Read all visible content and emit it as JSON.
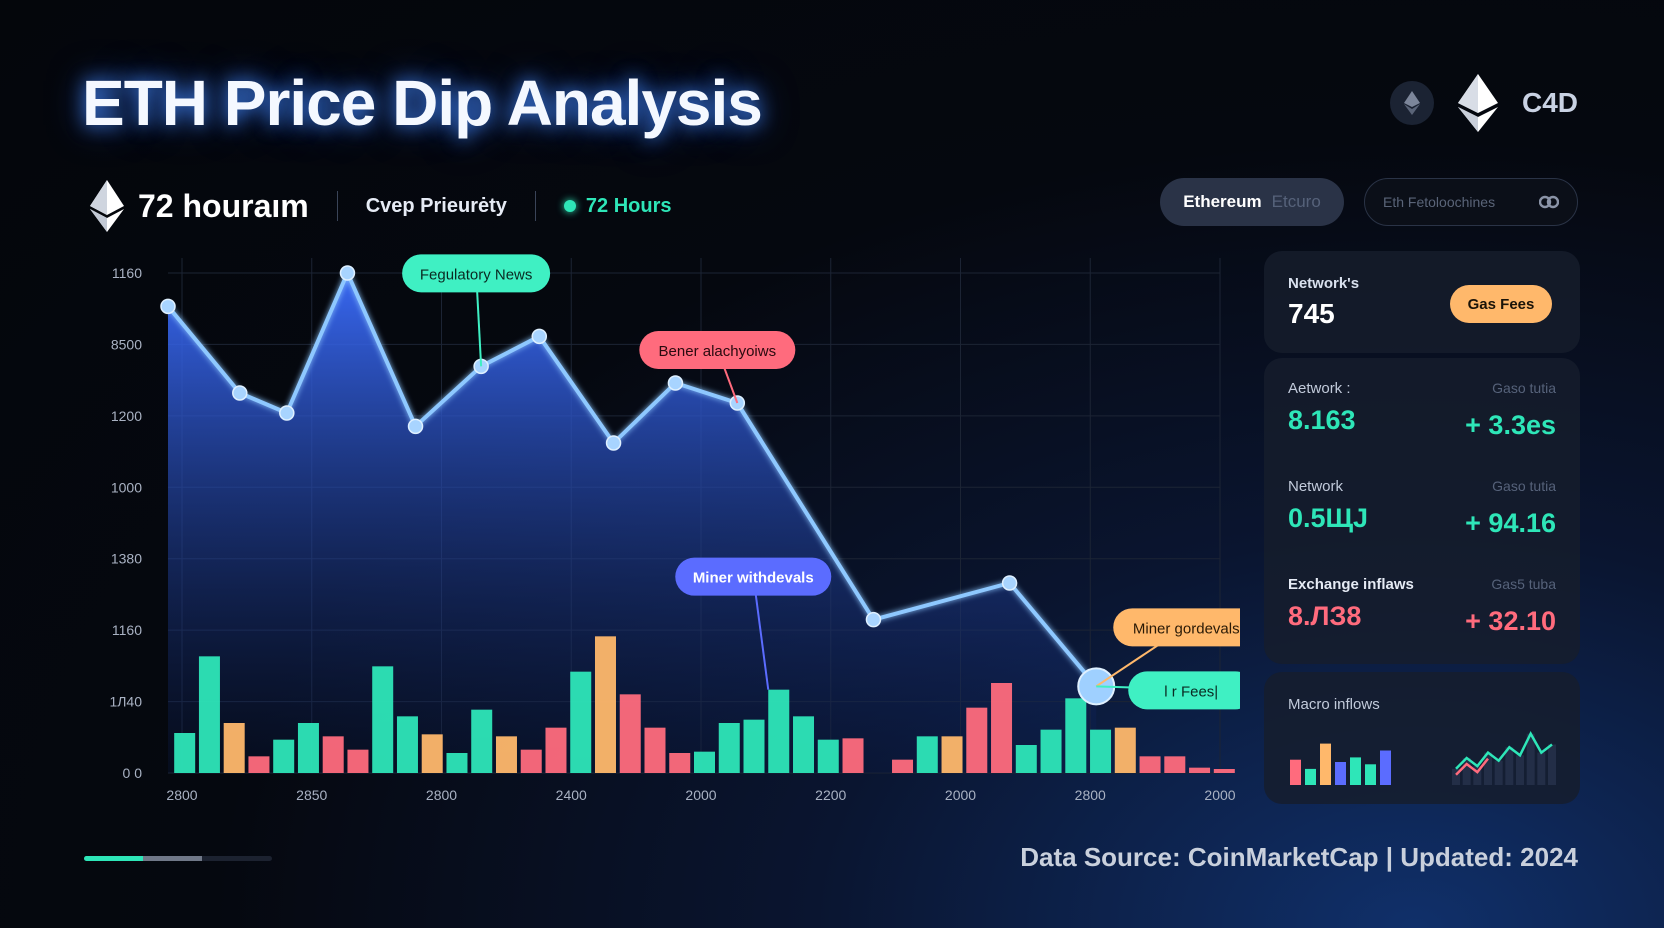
{
  "header": {
    "title": "ETH Price Dip Analysis",
    "brand": "C4D",
    "icons": [
      "ethereum-icon-small",
      "ethereum-logo-icon"
    ]
  },
  "subbar": {
    "title": "72 houraım",
    "label": "Cvep Prieurėty",
    "time": "72 Hours"
  },
  "controls": {
    "eth_pill": "Ethereum",
    "eth_pill_faint": "Etcuro",
    "search_placeholder": "Eth Fetoloochines"
  },
  "panels": {
    "network": {
      "label": "Network's",
      "value": "745",
      "button": "Gas Fees"
    },
    "metrics": [
      {
        "label": "Aetwork :",
        "right_label": "Gaso tutia",
        "value": "8.163",
        "change": "+ 3.3es",
        "color": "teal"
      },
      {
        "label": "Network",
        "right_label": "Gaso tutia",
        "value": "0.5ЩJ",
        "change": "+ 94.16",
        "color": "teal"
      },
      {
        "label": "Exchange inflaws",
        "right_label": "Gas5 tuba",
        "value": "8.ЛЗ8",
        "change": "+ 32.10",
        "color": "red"
      }
    ],
    "macro": {
      "label": "Macro inflows"
    }
  },
  "footer": {
    "source": "Data Source: CoinMarketCap | Updated: 2024"
  },
  "progress": {
    "fraction": 0.63
  },
  "colors": {
    "teal": "#2ee6b8",
    "orange": "#ffb86b",
    "red": "#ff6b7d",
    "line": "#8ec8ff",
    "area_top": "#3b6dff"
  },
  "chart_data": {
    "type": "area",
    "title": "",
    "xlabel": "",
    "ylabel": "",
    "yticks": [
      "1160",
      "8500",
      "1200",
      "1000",
      "1380",
      "1160",
      "1Л40",
      "0 0"
    ],
    "xticks": [
      "2800",
      "2850",
      "2800",
      "2400",
      "2000",
      "2200",
      "2000",
      "2800",
      "2000"
    ],
    "grid": true,
    "price_line": [
      {
        "x": 0.0,
        "y": 7.0
      },
      {
        "x": 0.58,
        "y": 5.7
      },
      {
        "x": 0.96,
        "y": 5.4
      },
      {
        "x": 1.45,
        "y": 7.5
      },
      {
        "x": 2.0,
        "y": 5.2
      },
      {
        "x": 2.53,
        "y": 6.1
      },
      {
        "x": 3.0,
        "y": 6.55
      },
      {
        "x": 3.6,
        "y": 4.95
      },
      {
        "x": 4.1,
        "y": 5.85
      },
      {
        "x": 4.6,
        "y": 5.55
      },
      {
        "x": 5.7,
        "y": 2.3
      },
      {
        "x": 6.8,
        "y": 2.85
      },
      {
        "x": 7.5,
        "y": 1.3
      }
    ],
    "bars": [
      {
        "x": 0.05,
        "v": 0.6,
        "c": "teal"
      },
      {
        "x": 0.25,
        "v": 1.75,
        "c": "teal"
      },
      {
        "x": 0.45,
        "v": 0.75,
        "c": "orange"
      },
      {
        "x": 0.65,
        "v": 0.25,
        "c": "red"
      },
      {
        "x": 0.85,
        "v": 0.5,
        "c": "teal"
      },
      {
        "x": 1.05,
        "v": 0.75,
        "c": "teal"
      },
      {
        "x": 1.25,
        "v": 0.55,
        "c": "red"
      },
      {
        "x": 1.45,
        "v": 0.35,
        "c": "red"
      },
      {
        "x": 1.65,
        "v": 1.6,
        "c": "teal"
      },
      {
        "x": 1.85,
        "v": 0.85,
        "c": "teal"
      },
      {
        "x": 2.05,
        "v": 0.58,
        "c": "orange"
      },
      {
        "x": 2.25,
        "v": 0.3,
        "c": "teal"
      },
      {
        "x": 2.45,
        "v": 0.95,
        "c": "teal"
      },
      {
        "x": 2.65,
        "v": 0.55,
        "c": "orange"
      },
      {
        "x": 2.85,
        "v": 0.35,
        "c": "red"
      },
      {
        "x": 3.05,
        "v": 0.68,
        "c": "red"
      },
      {
        "x": 3.25,
        "v": 1.52,
        "c": "teal"
      },
      {
        "x": 3.45,
        "v": 2.05,
        "c": "orange"
      },
      {
        "x": 3.65,
        "v": 1.18,
        "c": "red"
      },
      {
        "x": 3.85,
        "v": 0.68,
        "c": "red"
      },
      {
        "x": 4.05,
        "v": 0.3,
        "c": "red"
      },
      {
        "x": 4.25,
        "v": 0.32,
        "c": "teal"
      },
      {
        "x": 4.45,
        "v": 0.75,
        "c": "teal"
      },
      {
        "x": 4.65,
        "v": 0.8,
        "c": "teal"
      },
      {
        "x": 4.85,
        "v": 1.25,
        "c": "teal"
      },
      {
        "x": 5.05,
        "v": 0.85,
        "c": "teal"
      },
      {
        "x": 5.25,
        "v": 0.5,
        "c": "teal"
      },
      {
        "x": 5.45,
        "v": 0.52,
        "c": "red"
      },
      {
        "x": 5.85,
        "v": 0.2,
        "c": "red"
      },
      {
        "x": 6.05,
        "v": 0.55,
        "c": "teal"
      },
      {
        "x": 6.25,
        "v": 0.55,
        "c": "orange"
      },
      {
        "x": 6.45,
        "v": 0.98,
        "c": "red"
      },
      {
        "x": 6.65,
        "v": 1.35,
        "c": "red"
      },
      {
        "x": 6.85,
        "v": 0.42,
        "c": "teal"
      },
      {
        "x": 7.05,
        "v": 0.65,
        "c": "teal"
      },
      {
        "x": 7.25,
        "v": 1.12,
        "c": "teal"
      },
      {
        "x": 7.45,
        "v": 0.65,
        "c": "teal"
      },
      {
        "x": 7.65,
        "v": 0.68,
        "c": "orange"
      },
      {
        "x": 7.85,
        "v": 0.25,
        "c": "red"
      },
      {
        "x": 8.05,
        "v": 0.25,
        "c": "red"
      },
      {
        "x": 8.25,
        "v": 0.08,
        "c": "red"
      },
      {
        "x": 8.45,
        "v": 0.06,
        "c": "red"
      }
    ],
    "annotations": [
      {
        "text": "Fegulatory News",
        "x": 2.53,
        "y": 6.1,
        "color": "teal"
      },
      {
        "text": "Bener alachyoiws",
        "x": 4.6,
        "y": 5.55,
        "color": "red"
      },
      {
        "text": "Miner withdevals",
        "x": 4.85,
        "y": 1.25,
        "color": "purple"
      },
      {
        "text": "Miner gordevals",
        "x": 7.5,
        "y": 1.3,
        "color": "orange"
      },
      {
        "text": "l r Fees|",
        "x": 7.5,
        "y": 1.3,
        "color": "teal"
      }
    ]
  },
  "macro_chart": {
    "bars": [
      0.55,
      0.35,
      0.9,
      0.5,
      0.6,
      0.45,
      0.75
    ],
    "bar_colors": [
      "red",
      "teal",
      "orange",
      "purple",
      "teal",
      "teal",
      "purple"
    ],
    "line": [
      0.3,
      0.5,
      0.35,
      0.6,
      0.45,
      0.7,
      0.55,
      0.95,
      0.6,
      0.75
    ]
  }
}
